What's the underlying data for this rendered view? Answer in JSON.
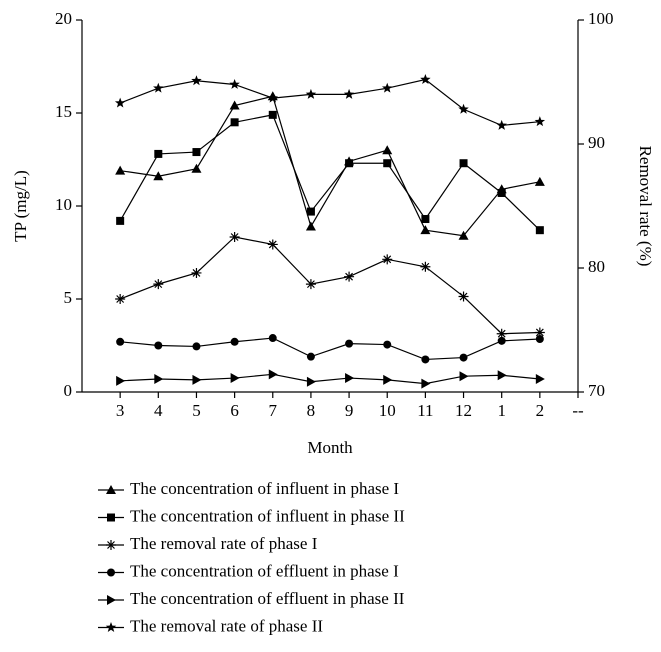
{
  "chart_data": {
    "type": "line",
    "xlabel": "Month",
    "ylabel": "TP (mg/L)",
    "y2label": "Removal rate (%)",
    "categories": [
      "3",
      "4",
      "5",
      "6",
      "7",
      "8",
      "9",
      "10",
      "11",
      "12",
      "1",
      "2",
      "--"
    ],
    "ylim": [
      0,
      20
    ],
    "yticks": [
      0,
      5,
      10,
      15,
      20
    ],
    "y2lim": [
      70,
      100
    ],
    "y2ticks": [
      70,
      80,
      90,
      100
    ],
    "legend": "bottom",
    "series": [
      {
        "name": "The concentration of influent in phase I",
        "color": "#000000",
        "marker": "triangle",
        "values": [
          11.9,
          11.6,
          12.0,
          15.4,
          15.9,
          8.9,
          12.4,
          13.0,
          8.7,
          8.4,
          10.9,
          11.3,
          null
        ]
      },
      {
        "name": "The concentration of influent in phase II",
        "color": "#000000",
        "marker": "square",
        "values": [
          9.2,
          12.8,
          12.9,
          14.5,
          14.9,
          9.7,
          12.3,
          12.3,
          9.3,
          12.3,
          10.7,
          8.7,
          null
        ]
      },
      {
        "name": "The removal rate of phase I",
        "color": "#000000",
        "marker": "asterisk",
        "axis": "y2",
        "values": [
          77.5,
          78.7,
          79.6,
          82.5,
          81.9,
          78.7,
          79.3,
          80.7,
          80.1,
          77.7,
          74.7,
          74.8,
          null
        ]
      },
      {
        "name": "The concentration of effluent in phase I",
        "color": "#000000",
        "marker": "circle",
        "values": [
          2.7,
          2.5,
          2.45,
          2.7,
          2.9,
          1.9,
          2.6,
          2.55,
          1.75,
          1.85,
          2.75,
          2.85,
          null
        ]
      },
      {
        "name": "The concentration of effluent in phase II",
        "color": "#000000",
        "marker": "triangle-right",
        "values": [
          0.6,
          0.7,
          0.65,
          0.75,
          0.95,
          0.55,
          0.75,
          0.65,
          0.45,
          0.85,
          0.9,
          0.7,
          null
        ]
      },
      {
        "name": "The removal rate of phase II",
        "color": "#000000",
        "marker": "star",
        "axis": "y2",
        "values": [
          93.3,
          94.5,
          95.1,
          94.8,
          93.7,
          94.0,
          94.0,
          94.5,
          95.2,
          92.8,
          91.5,
          91.8,
          null
        ]
      }
    ]
  }
}
